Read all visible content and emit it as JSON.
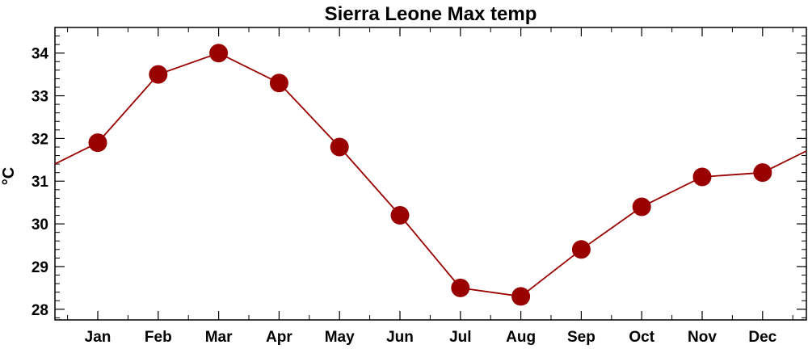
{
  "chart_data": {
    "type": "line",
    "title": "Sierra Leone Max temp",
    "xlabel": "",
    "ylabel": "°C",
    "categories": [
      "Jan",
      "Feb",
      "Mar",
      "Apr",
      "May",
      "Jun",
      "Jul",
      "Aug",
      "Sep",
      "Oct",
      "Nov",
      "Dec"
    ],
    "series": [
      {
        "values": [
          31.9,
          33.5,
          34.0,
          33.3,
          31.8,
          30.2,
          28.5,
          28.3,
          29.4,
          30.4,
          31.1,
          31.2
        ],
        "color": "#990000"
      }
    ],
    "yticks": [
      28,
      29,
      30,
      31,
      32,
      33,
      34
    ],
    "ylim": [
      27.75,
      34.6
    ],
    "grid": false,
    "legend": "none"
  }
}
